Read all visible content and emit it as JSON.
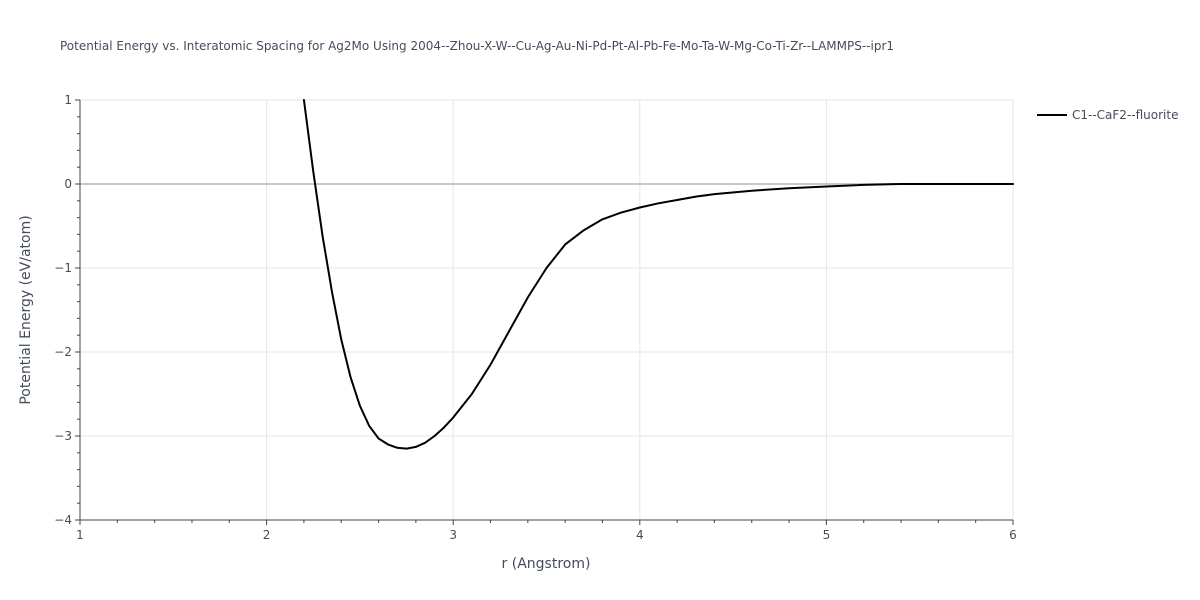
{
  "chart_data": {
    "type": "line",
    "title": "Potential Energy vs. Interatomic Spacing for Ag2Mo Using 2004--Zhou-X-W--Cu-Ag-Au-Ni-Pd-Pt-Al-Pb-Fe-Mo-Ta-W-Mg-Co-Ti-Zr--LAMMPS--ipr1",
    "xlabel": "r (Angstrom)",
    "ylabel": "Potential Energy (eV/atom)",
    "xlim": [
      1,
      6
    ],
    "ylim": [
      -4,
      1
    ],
    "x_ticks": [
      1,
      2,
      3,
      4,
      5,
      6
    ],
    "y_ticks": [
      1,
      0,
      -1,
      -2,
      -3,
      -4
    ],
    "grid": true,
    "legend_position": "top-right",
    "series": [
      {
        "name": "C1--CaF2--fluorite",
        "color": "#000000",
        "x": [
          2.2,
          2.25,
          2.3,
          2.35,
          2.4,
          2.45,
          2.5,
          2.55,
          2.6,
          2.65,
          2.7,
          2.75,
          2.8,
          2.85,
          2.9,
          2.95,
          3.0,
          3.1,
          3.2,
          3.3,
          3.4,
          3.5,
          3.6,
          3.7,
          3.8,
          3.9,
          4.0,
          4.1,
          4.2,
          4.3,
          4.4,
          4.6,
          4.8,
          5.0,
          5.2,
          5.4,
          5.6,
          5.8,
          6.0
        ],
        "y": [
          1.0,
          0.15,
          -0.62,
          -1.28,
          -1.85,
          -2.3,
          -2.64,
          -2.88,
          -3.03,
          -3.1,
          -3.14,
          -3.15,
          -3.13,
          -3.08,
          -3.0,
          -2.9,
          -2.78,
          -2.5,
          -2.15,
          -1.75,
          -1.35,
          -1.0,
          -0.72,
          -0.55,
          -0.42,
          -0.34,
          -0.28,
          -0.23,
          -0.19,
          -0.15,
          -0.12,
          -0.08,
          -0.05,
          -0.03,
          -0.01,
          0.0,
          0.0,
          0.0,
          0.0
        ]
      }
    ]
  }
}
